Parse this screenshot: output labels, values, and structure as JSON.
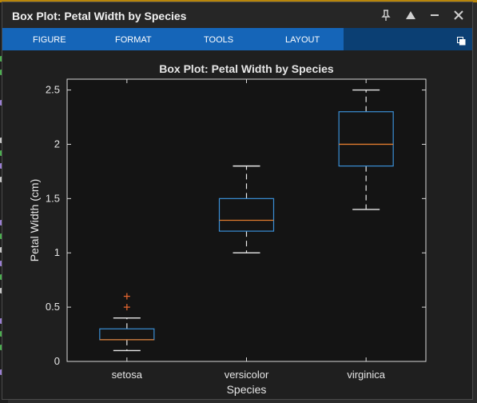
{
  "window": {
    "title": "Box Plot: Petal Width by Species",
    "buttons": [
      "pin-icon",
      "maximize-icon",
      "minimize-icon",
      "close-icon"
    ]
  },
  "ribbon": {
    "tabs": [
      "FIGURE",
      "FORMAT",
      "TOOLS",
      "LAYOUT"
    ],
    "accent": "#1565b8",
    "dark": "#0b3f73"
  },
  "chart_data": {
    "type": "box",
    "title": "Box Plot: Petal Width by Species",
    "xlabel": "Species",
    "ylabel": "Petal Width (cm)",
    "categories": [
      "setosa",
      "versicolor",
      "virginica"
    ],
    "ylim": [
      0,
      2.6
    ],
    "yticks": [
      "0",
      "0.5",
      "1",
      "1.5",
      "2",
      "2.5"
    ],
    "ytick_values": [
      0,
      0.5,
      1,
      1.5,
      2,
      2.5
    ],
    "boxes": [
      {
        "category": "setosa",
        "whisker_low": 0.1,
        "q1": 0.2,
        "median": 0.2,
        "q3": 0.3,
        "whisker_high": 0.4,
        "outliers": [
          0.5,
          0.6
        ]
      },
      {
        "category": "versicolor",
        "whisker_low": 1.0,
        "q1": 1.2,
        "median": 1.3,
        "q3": 1.5,
        "whisker_high": 1.8,
        "outliers": []
      },
      {
        "category": "virginica",
        "whisker_low": 1.4,
        "q1": 1.8,
        "median": 2.0,
        "q3": 2.3,
        "whisker_high": 2.5,
        "outliers": []
      }
    ],
    "colors": {
      "box": "#3a8fd6",
      "median": "#e07b2e",
      "outlier": "#e0642e",
      "whisker": "#e8e8e8",
      "axes": "#d9d9d9",
      "plot_bg": "#141414"
    },
    "grid": false
  }
}
